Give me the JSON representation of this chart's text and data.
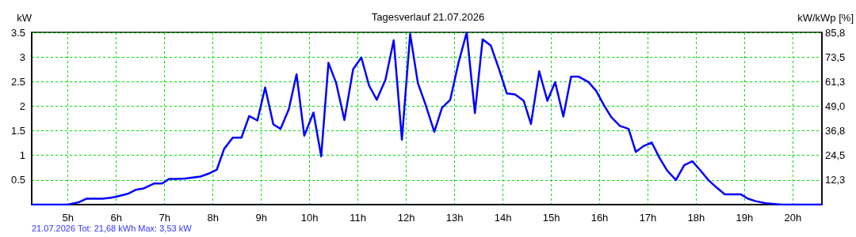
{
  "chart_data": {
    "type": "line",
    "title": "Tagesverlauf 21.07.2026",
    "ylabel": "kW",
    "y2label": "kW/kWp [%]",
    "annotations": [
      "21.07.2026 Tot: 21,68 kWh Max: 3,53 kW"
    ],
    "x": [
      4.25,
      5.0,
      5.23,
      5.38,
      5.72,
      5.89,
      6.0,
      6.24,
      6.4,
      6.57,
      6.79,
      6.95,
      7.09,
      7.22,
      7.42,
      7.74,
      7.91,
      8.08,
      8.23,
      8.41,
      8.59,
      8.75,
      8.92,
      9.08,
      9.25,
      9.4,
      9.57,
      9.73,
      9.89,
      10.08,
      10.24,
      10.39,
      10.55,
      10.72,
      10.9,
      11.07,
      11.23,
      11.39,
      11.57,
      11.74,
      11.91,
      12.08,
      12.24,
      12.4,
      12.58,
      12.74,
      12.91,
      13.08,
      13.25,
      13.42,
      13.58,
      13.75,
      13.92,
      14.08,
      14.25,
      14.43,
      14.58,
      14.75,
      14.92,
      15.08,
      15.25,
      15.41,
      15.57,
      15.77,
      15.93,
      16.09,
      16.24,
      16.42,
      16.6,
      16.75,
      16.91,
      17.08,
      17.24,
      17.4,
      17.58,
      17.75,
      17.92,
      18.09,
      18.25,
      18.43,
      18.59,
      18.92,
      19.07,
      19.23,
      19.43,
      19.75,
      20.6
    ],
    "series": [
      {
        "color": "#0000ff",
        "values": [
          0,
          0,
          0.05,
          0.12,
          0.12,
          0.14,
          0.16,
          0.22,
          0.3,
          0.33,
          0.43,
          0.43,
          0.52,
          0.52,
          0.53,
          0.57,
          0.63,
          0.71,
          1.13,
          1.36,
          1.36,
          1.8,
          1.71,
          2.38,
          1.63,
          1.54,
          1.94,
          2.65,
          1.4,
          1.87,
          0.98,
          2.88,
          2.47,
          1.72,
          2.75,
          2.99,
          2.42,
          2.13,
          2.54,
          3.34,
          1.32,
          3.47,
          2.47,
          2.03,
          1.48,
          1.97,
          2.13,
          2.88,
          3.5,
          1.86,
          3.36,
          3.23,
          2.75,
          2.26,
          2.24,
          2.11,
          1.64,
          2.71,
          2.11,
          2.49,
          1.79,
          2.6,
          2.6,
          2.49,
          2.31,
          2.02,
          1.78,
          1.6,
          1.54,
          1.07,
          1.19,
          1.26,
          0.95,
          0.69,
          0.5,
          0.8,
          0.88,
          0.69,
          0.5,
          0.34,
          0.21,
          0.21,
          0.12,
          0.07,
          0.03,
          0,
          0
        ]
      }
    ],
    "xlim": [
      4.25,
      20.6
    ],
    "xticks": [
      {
        "value": 5,
        "label": "5h"
      },
      {
        "value": 6,
        "label": "6h"
      },
      {
        "value": 7,
        "label": "7h"
      },
      {
        "value": 8,
        "label": "8h"
      },
      {
        "value": 9,
        "label": "9h"
      },
      {
        "value": 10,
        "label": "10h"
      },
      {
        "value": 11,
        "label": "11h"
      },
      {
        "value": 12,
        "label": "12h"
      },
      {
        "value": 13,
        "label": "13h"
      },
      {
        "value": 14,
        "label": "14h"
      },
      {
        "value": 15,
        "label": "15h"
      },
      {
        "value": 16,
        "label": "16h"
      },
      {
        "value": 17,
        "label": "17h"
      },
      {
        "value": 18,
        "label": "18h"
      },
      {
        "value": 19,
        "label": "19h"
      },
      {
        "value": 20,
        "label": "20h"
      }
    ],
    "ylim": [
      0,
      3.5
    ],
    "yticks": [
      0.5,
      1,
      1.5,
      2,
      2.5,
      3,
      3.5
    ],
    "y2lim": [
      0,
      85.8
    ],
    "y2ticks": [
      {
        "value": 12.3,
        "label": "12,3"
      },
      {
        "value": 24.5,
        "label": "24,5"
      },
      {
        "value": 36.8,
        "label": "36,8"
      },
      {
        "value": 49.0,
        "label": "49,0"
      },
      {
        "value": 61.3,
        "label": "61,3"
      },
      {
        "value": 73.5,
        "label": "73,5"
      },
      {
        "value": 85.8,
        "label": "85,8"
      }
    ],
    "grid": true,
    "marker": "none",
    "line_style": "solid"
  }
}
